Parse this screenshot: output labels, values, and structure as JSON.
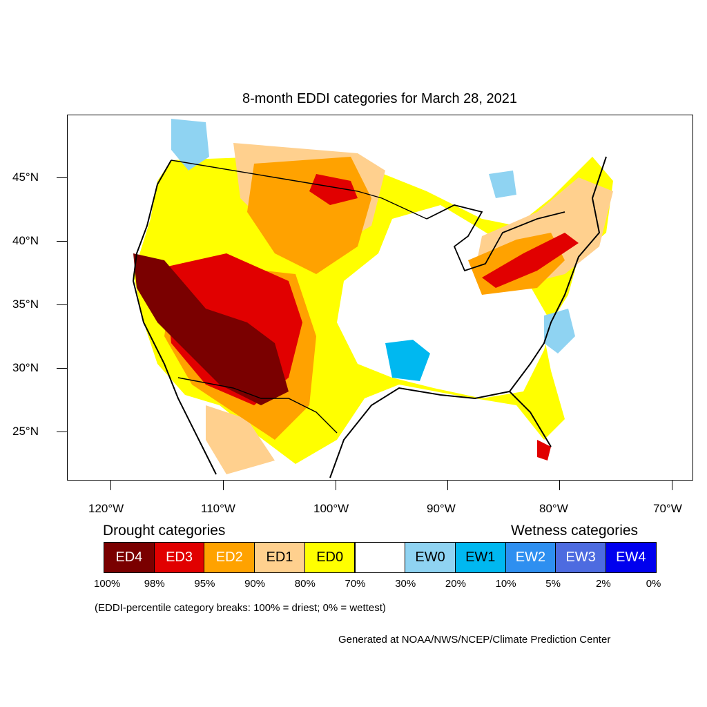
{
  "title": "8-month EDDI categories for March 28, 2021",
  "lat_labels": [
    "45°N",
    "40°N",
    "35°N",
    "30°N",
    "25°N"
  ],
  "lon_labels": [
    "120°W",
    "110°W",
    "100°W",
    "90°W",
    "80°W",
    "70°W"
  ],
  "legend": {
    "drought_heading": "Drought categories",
    "wetness_heading": "Wetness categories",
    "categories": [
      {
        "label": "ED4",
        "color": "#7a0000",
        "text_color": "#ffffff"
      },
      {
        "label": "ED3",
        "color": "#e10000",
        "text_color": "#ffffff"
      },
      {
        "label": "ED2",
        "color": "#ffa200",
        "text_color": "#ffffff"
      },
      {
        "label": "ED1",
        "color": "#ffd08e",
        "text_color": "#000000"
      },
      {
        "label": "ED0",
        "color": "#ffff00",
        "text_color": "#000000"
      },
      {
        "label": "",
        "color": "#ffffff",
        "text_color": "#000000"
      },
      {
        "label": "EW0",
        "color": "#8fd3f2",
        "text_color": "#000000"
      },
      {
        "label": "EW1",
        "color": "#00b8f0",
        "text_color": "#000000"
      },
      {
        "label": "EW2",
        "color": "#2e8ff0",
        "text_color": "#ffffff"
      },
      {
        "label": "EW3",
        "color": "#4d6be0",
        "text_color": "#ffffff"
      },
      {
        "label": "EW4",
        "color": "#0000ee",
        "text_color": "#ffffff"
      }
    ],
    "percent_breaks": [
      "100%",
      "98%",
      "95%",
      "90%",
      "80%",
      "70%",
      "30%",
      "20%",
      "10%",
      "5%",
      "2%",
      "0%"
    ]
  },
  "note": "(EDDI-percentile category breaks: 100% = driest; 0% = wettest)",
  "credit": "Generated at NOAA/NWS/NCEP/Climate Prediction Center"
}
